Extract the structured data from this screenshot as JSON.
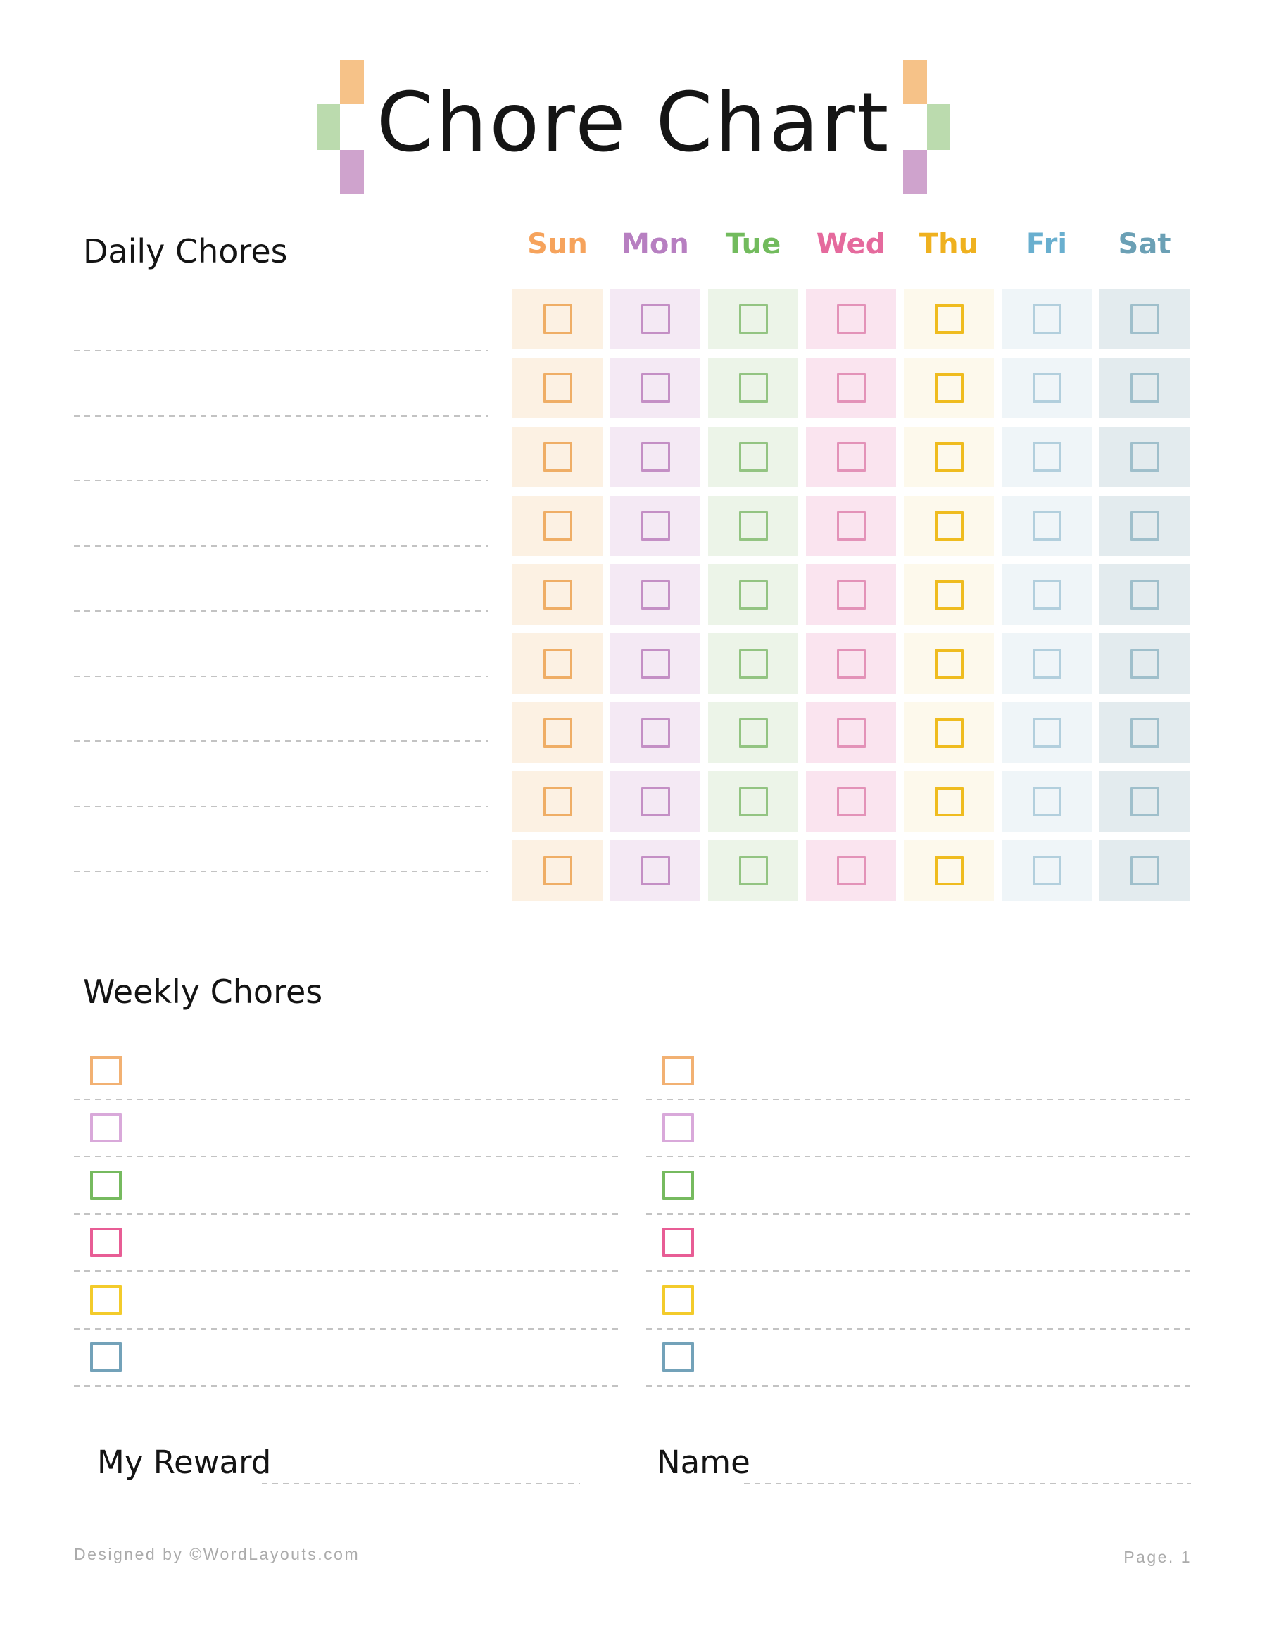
{
  "title": {
    "text": "Chore Chart"
  },
  "decoration": {
    "orange": "#F6C288",
    "green": "#BBDBAE",
    "purple": "#CFA3CD"
  },
  "daily": {
    "heading": "Daily Chores",
    "num_rows": 9,
    "days": [
      {
        "label": "Sun",
        "label_color": "#F6A35C",
        "cell_bg": "#FCF1E3",
        "box_border": "#EFAE66",
        "box_border_width": 3
      },
      {
        "label": "Mon",
        "label_color": "#B77FC1",
        "cell_bg": "#F4E9F4",
        "box_border": "#C48FC5",
        "box_border_width": 3
      },
      {
        "label": "Tue",
        "label_color": "#72BB5D",
        "cell_bg": "#ECF4E8",
        "box_border": "#93C482",
        "box_border_width": 3
      },
      {
        "label": "Wed",
        "label_color": "#E56A9D",
        "cell_bg": "#FAE4EF",
        "box_border": "#E392B8",
        "box_border_width": 3
      },
      {
        "label": "Thu",
        "label_color": "#EFB11F",
        "cell_bg": "#FDF9EC",
        "box_border": "#EFBC1F",
        "box_border_width": 4
      },
      {
        "label": "Fri",
        "label_color": "#69AFCF",
        "cell_bg": "#EFF5F8",
        "box_border": "#B2CFDD",
        "box_border_width": 3
      },
      {
        "label": "Sat",
        "label_color": "#6BA0B5",
        "cell_bg": "#E3EBEE",
        "box_border": "#9FBFCB",
        "box_border_width": 3
      }
    ]
  },
  "weekly": {
    "heading": "Weekly Chores",
    "columns": 2,
    "rows_per_column": 6,
    "box_colors": [
      "#F2B173",
      "#D9A9DA",
      "#76BA5F",
      "#E85D95",
      "#F3CB2B",
      "#73A2B9"
    ]
  },
  "fields": {
    "my_reward_label": "My Reward",
    "name_label": "Name"
  },
  "footer": {
    "credit": "Designed by ©WordLayouts.com",
    "page": "Page. 1"
  },
  "line_color": "#C3C3C3"
}
